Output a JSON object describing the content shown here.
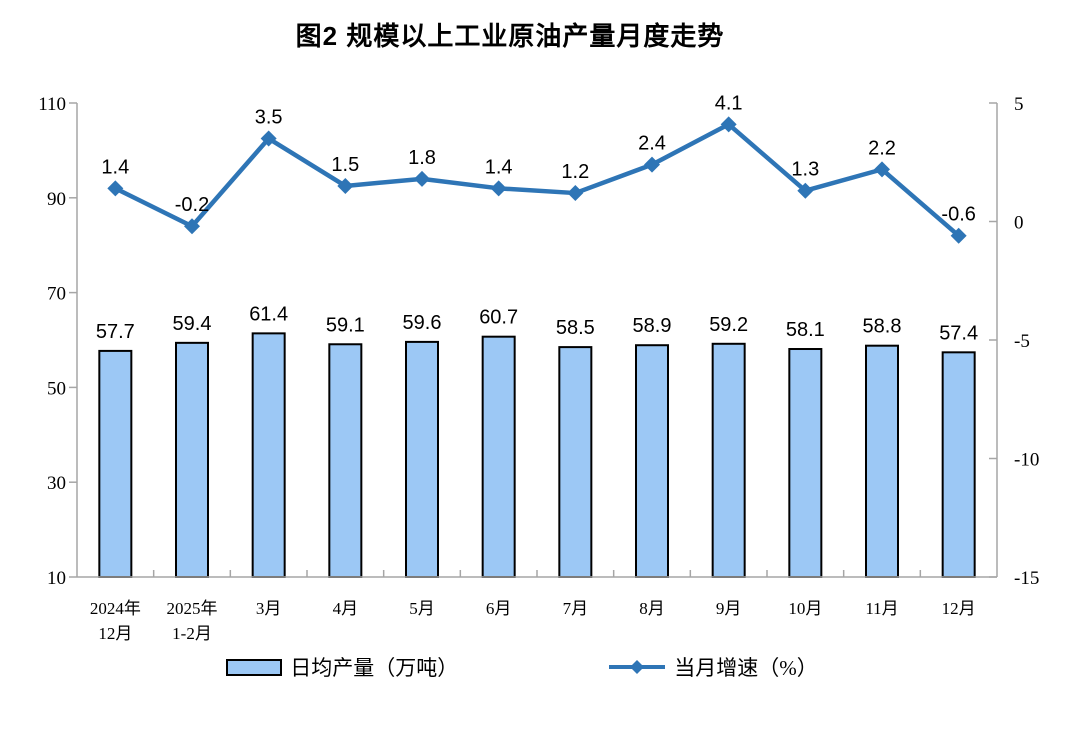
{
  "chart_data": {
    "type": "combo-bar-line",
    "title": "图2 规模以上工业原油产量月度走势",
    "categories": [
      "2024年12月",
      "2025年1-2月",
      "3月",
      "4月",
      "5月",
      "6月",
      "7月",
      "8月",
      "9月",
      "10月",
      "11月",
      "12月"
    ],
    "categories_display": [
      [
        "2024年",
        "12月"
      ],
      [
        "2025年",
        "1-2月"
      ],
      [
        "3月"
      ],
      [
        "4月"
      ],
      [
        "5月"
      ],
      [
        "6月"
      ],
      [
        "7月"
      ],
      [
        "8月"
      ],
      [
        "9月"
      ],
      [
        "10月"
      ],
      [
        "11月"
      ],
      [
        "12月"
      ]
    ],
    "series": [
      {
        "name": "日均产量（万吨）",
        "type": "bar",
        "axis": "left",
        "values": [
          57.7,
          59.4,
          61.4,
          59.1,
          59.6,
          60.7,
          58.5,
          58.9,
          59.2,
          58.1,
          58.8,
          57.4
        ]
      },
      {
        "name": "当月增速（%）",
        "type": "line",
        "axis": "right",
        "values": [
          1.4,
          -0.2,
          3.5,
          1.5,
          1.8,
          1.4,
          1.2,
          2.4,
          4.1,
          1.3,
          2.2,
          -0.6
        ]
      }
    ],
    "left_axis": {
      "min": 10,
      "max": 110,
      "ticks": [
        110,
        90,
        70,
        50,
        30,
        10
      ]
    },
    "right_axis": {
      "min": -15,
      "max": 5,
      "ticks": [
        5,
        0,
        -5,
        -10,
        -15
      ]
    },
    "legend_position": "bottom",
    "grid": false,
    "colors": {
      "bar_fill": "#9CC8F5",
      "bar_stroke": "#000000",
      "line": "#2E75B6",
      "axis": "#A6A6A6",
      "text": "#000000"
    }
  }
}
